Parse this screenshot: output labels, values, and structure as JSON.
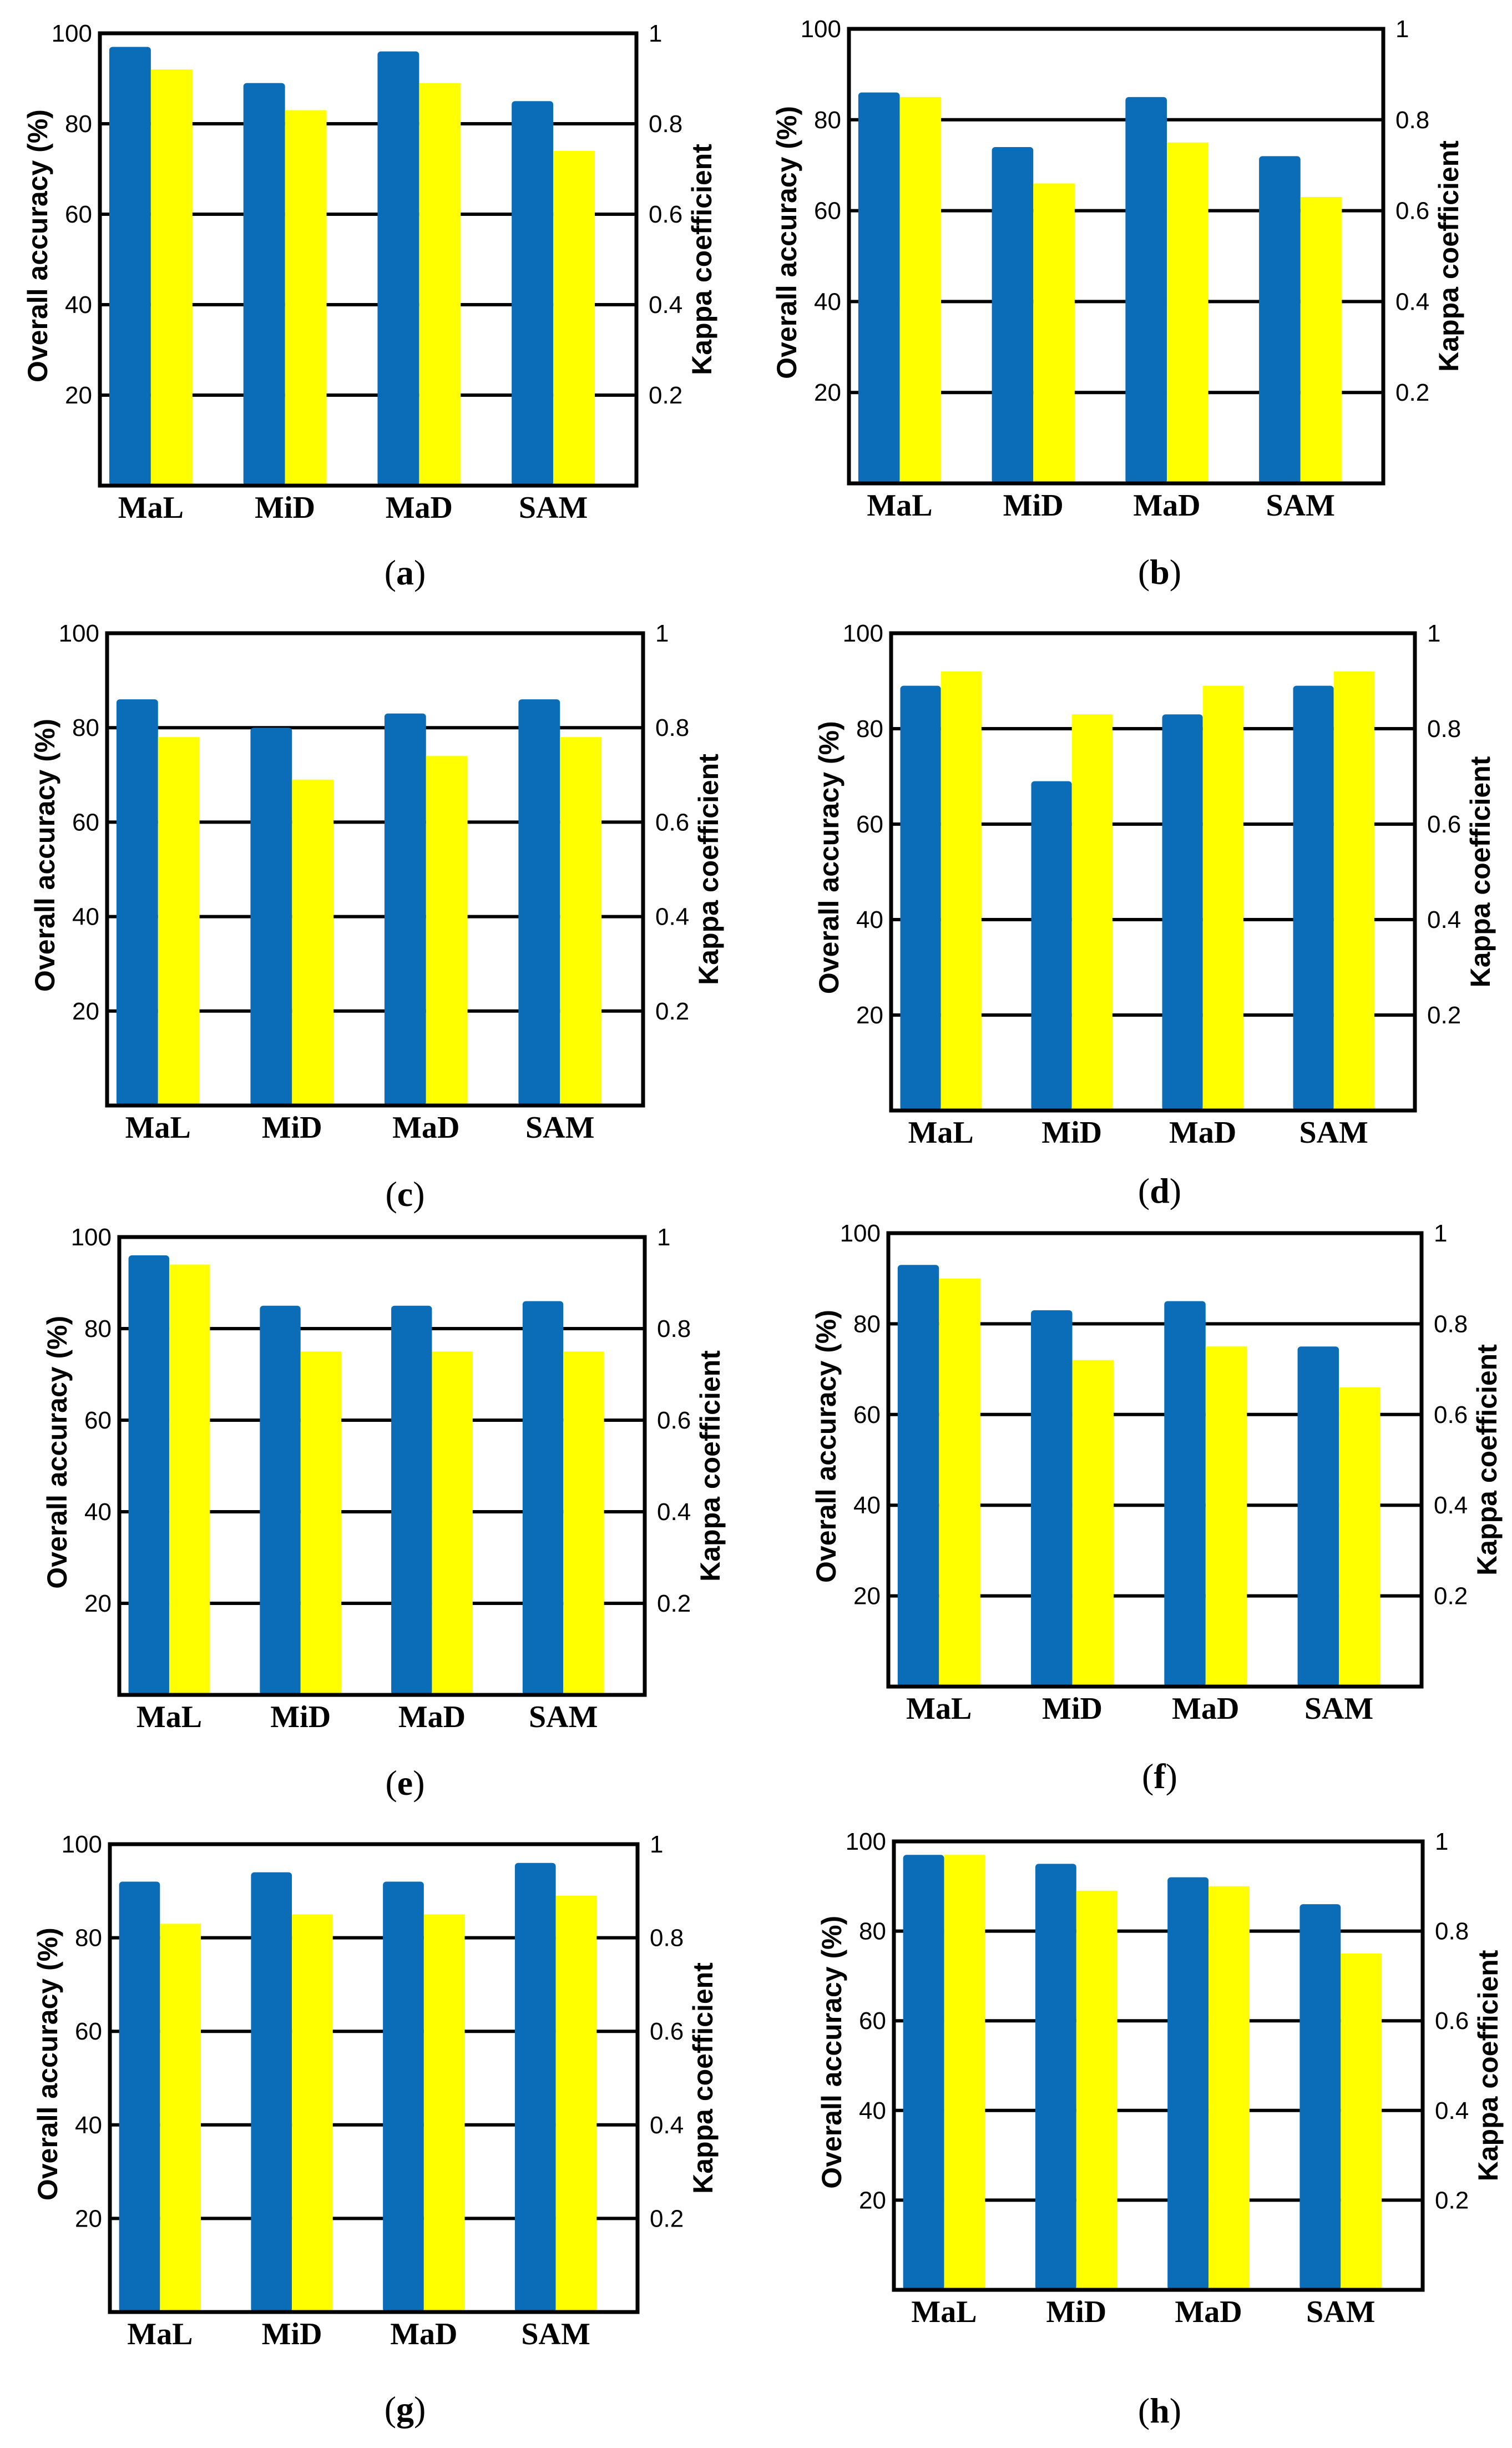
{
  "colors": {
    "overall_accuracy": "#0b6cb8",
    "kappa": "#ffff00",
    "grid": "#000000"
  },
  "chart_data": [
    {
      "type": "bar",
      "label": "a",
      "categories": [
        "MaL",
        "MiD",
        "MaD",
        "SAM"
      ],
      "series": [
        {
          "name": "Overall accuracy",
          "axis": "left",
          "values": [
            97,
            89,
            96,
            85
          ]
        },
        {
          "name": "Kappa coefficient",
          "axis": "right",
          "values": [
            0.92,
            0.83,
            0.89,
            0.74
          ]
        }
      ],
      "ylabel": "Overall accuracy (%)",
      "y2label": "Kappa coefficient",
      "ylim": [
        0,
        100
      ],
      "y2lim": [
        0,
        1
      ],
      "yticks": [
        20,
        40,
        60,
        80,
        100
      ],
      "y2ticks": [
        0.2,
        0.4,
        0.6,
        0.8,
        1
      ],
      "grid": true
    },
    {
      "type": "bar",
      "label": "b",
      "categories": [
        "MaL",
        "MiD",
        "MaD",
        "SAM"
      ],
      "series": [
        {
          "name": "Overall accuracy",
          "axis": "left",
          "values": [
            86,
            74,
            85,
            72
          ]
        },
        {
          "name": "Kappa coefficient",
          "axis": "right",
          "values": [
            0.85,
            0.66,
            0.75,
            0.63
          ]
        }
      ],
      "ylabel": "Overall accuracy (%)",
      "y2label": "Kappa coefficient",
      "ylim": [
        0,
        100
      ],
      "y2lim": [
        0,
        1
      ],
      "yticks": [
        20,
        40,
        60,
        80,
        100
      ],
      "y2ticks": [
        0.2,
        0.4,
        0.6,
        0.8,
        1
      ],
      "grid": true
    },
    {
      "type": "bar",
      "label": "c",
      "categories": [
        "MaL",
        "MiD",
        "MaD",
        "SAM"
      ],
      "series": [
        {
          "name": "Overall accuracy",
          "axis": "left",
          "values": [
            86,
            80,
            83,
            86
          ]
        },
        {
          "name": "Kappa coefficient",
          "axis": "right",
          "values": [
            0.78,
            0.69,
            0.74,
            0.78
          ]
        }
      ],
      "ylabel": "Overall accuracy (%)",
      "y2label": "Kappa coefficient",
      "ylim": [
        0,
        100
      ],
      "y2lim": [
        0,
        1
      ],
      "yticks": [
        20,
        40,
        60,
        80,
        100
      ],
      "y2ticks": [
        0.2,
        0.4,
        0.6,
        0.8,
        1
      ],
      "grid": true
    },
    {
      "type": "bar",
      "label": "d",
      "categories": [
        "MaL",
        "MiD",
        "MaD",
        "SAM"
      ],
      "series": [
        {
          "name": "Overall accuracy",
          "axis": "left",
          "values": [
            89,
            69,
            83,
            89
          ]
        },
        {
          "name": "Kappa coefficient",
          "axis": "right",
          "values": [
            0.92,
            0.83,
            0.89,
            0.92
          ]
        }
      ],
      "ylabel": "Overall accuracy (%)",
      "y2label": "Kappa coefficient",
      "ylim": [
        0,
        100
      ],
      "y2lim": [
        0,
        1
      ],
      "yticks": [
        20,
        40,
        60,
        80,
        100
      ],
      "y2ticks": [
        0.2,
        0.4,
        0.6,
        0.8,
        1
      ],
      "grid": true
    },
    {
      "type": "bar",
      "label": "e",
      "categories": [
        "MaL",
        "MiD",
        "MaD",
        "SAM"
      ],
      "series": [
        {
          "name": "Overall accuracy",
          "axis": "left",
          "values": [
            96,
            85,
            85,
            86
          ]
        },
        {
          "name": "Kappa coefficient",
          "axis": "right",
          "values": [
            0.94,
            0.75,
            0.75,
            0.75
          ]
        }
      ],
      "ylabel": "Overall accuracy (%)",
      "y2label": "Kappa coefficient",
      "ylim": [
        0,
        100
      ],
      "y2lim": [
        0,
        1
      ],
      "yticks": [
        20,
        40,
        60,
        80,
        100
      ],
      "y2ticks": [
        0.2,
        0.4,
        0.6,
        0.8,
        1
      ],
      "grid": true
    },
    {
      "type": "bar",
      "label": "f",
      "categories": [
        "MaL",
        "MiD",
        "MaD",
        "SAM"
      ],
      "series": [
        {
          "name": "Overall accuracy",
          "axis": "left",
          "values": [
            93,
            83,
            85,
            75
          ]
        },
        {
          "name": "Kappa coefficient",
          "axis": "right",
          "values": [
            0.9,
            0.72,
            0.75,
            0.66
          ]
        }
      ],
      "ylabel": "Overall accuracy (%)",
      "y2label": "Kappa coefficient",
      "ylim": [
        0,
        100
      ],
      "y2lim": [
        0,
        1
      ],
      "yticks": [
        20,
        40,
        60,
        80,
        100
      ],
      "y2ticks": [
        0.2,
        0.4,
        0.6,
        0.8,
        1
      ],
      "grid": true
    },
    {
      "type": "bar",
      "label": "g",
      "categories": [
        "MaL",
        "MiD",
        "MaD",
        "SAM"
      ],
      "series": [
        {
          "name": "Overall accuracy",
          "axis": "left",
          "values": [
            92,
            94,
            92,
            96
          ]
        },
        {
          "name": "Kappa coefficient",
          "axis": "right",
          "values": [
            0.83,
            0.85,
            0.85,
            0.89
          ]
        }
      ],
      "ylabel": "Overall accuracy (%)",
      "y2label": "Kappa coefficient",
      "ylim": [
        0,
        100
      ],
      "y2lim": [
        0,
        1
      ],
      "yticks": [
        20,
        40,
        60,
        80,
        100
      ],
      "y2ticks": [
        0.2,
        0.4,
        0.6,
        0.8,
        1
      ],
      "grid": true
    },
    {
      "type": "bar",
      "label": "h",
      "categories": [
        "MaL",
        "MiD",
        "MaD",
        "SAM"
      ],
      "series": [
        {
          "name": "Overall accuracy",
          "axis": "left",
          "values": [
            97,
            95,
            92,
            86
          ]
        },
        {
          "name": "Kappa coefficient",
          "axis": "right",
          "values": [
            0.97,
            0.89,
            0.9,
            0.75
          ]
        }
      ],
      "ylabel": "Overall accuracy (%)",
      "y2label": "Kappa coefficient",
      "ylim": [
        0,
        100
      ],
      "y2lim": [
        0,
        1
      ],
      "yticks": [
        20,
        40,
        60,
        80,
        100
      ],
      "y2ticks": [
        0.2,
        0.4,
        0.6,
        0.8,
        1
      ],
      "grid": true
    }
  ]
}
